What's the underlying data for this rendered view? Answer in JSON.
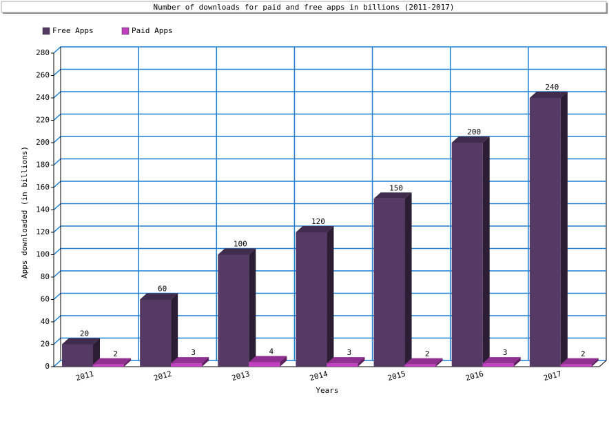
{
  "chart_data": {
    "type": "bar3d",
    "title": "Number of downloads for paid and free apps in billions (2011-2017)",
    "x_label": "Years",
    "y_label": "Apps downloaded (in billions)",
    "categories": [
      "2011",
      "2012",
      "2013",
      "2014",
      "2015",
      "2016",
      "2017"
    ],
    "series": [
      {
        "name": "Free Apps",
        "color": "#553a66",
        "values": [
          20,
          60,
          100,
          120,
          150,
          200,
          240
        ]
      },
      {
        "name": "Paid Apps",
        "color": "#c040c0",
        "values": [
          2,
          3,
          4,
          3,
          2,
          3,
          2
        ]
      }
    ],
    "ylim": [
      0,
      280
    ],
    "yticks": [
      0,
      20,
      40,
      60,
      80,
      100,
      120,
      140,
      160,
      180,
      200,
      220,
      240,
      260,
      280
    ],
    "grid": true,
    "legend": "top-left"
  }
}
